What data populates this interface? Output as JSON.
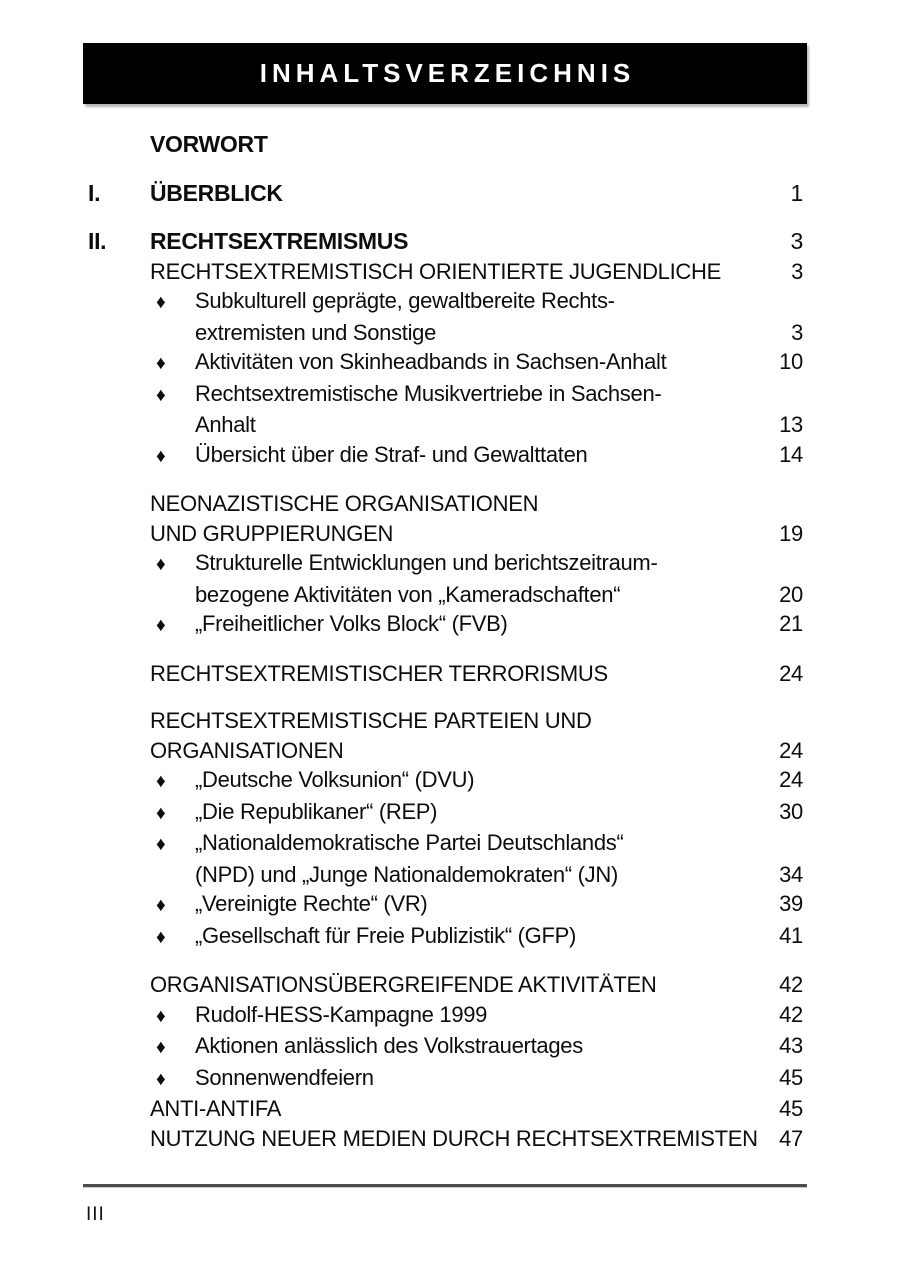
{
  "page": {
    "header": {
      "title": "INHALTSVERZEICHNIS"
    },
    "footer": {
      "page_label": "III"
    },
    "colors": {
      "bar_bg": "#000000",
      "bar_text": "#ffffff",
      "text": "#0d0d0d",
      "rule": "#4d4d4d"
    },
    "toc": {
      "bullet_glyph": "♦",
      "rows": [
        {
          "kind": "chapter",
          "numeral": "",
          "text": "VORWORT",
          "page": "",
          "gap": "first"
        },
        {
          "kind": "chapter",
          "numeral": "I.",
          "text": "ÜBERBLICK",
          "page": "1",
          "gap": "lg"
        },
        {
          "kind": "chapter",
          "numeral": "II.",
          "text": "RECHTSEXTREMISMUS",
          "page": "3",
          "gap": "lg"
        },
        {
          "kind": "section",
          "text": "RECHTSEXTREMISTISCH ORIENTIERTE JUGENDLICHE",
          "page": "3"
        },
        {
          "kind": "bullet",
          "text": "Subkulturell geprägte, gewaltbereite Rechts-",
          "page": ""
        },
        {
          "kind": "cont",
          "text": "extremisten und Sonstige",
          "page": "3"
        },
        {
          "kind": "bullet",
          "text": "Aktivitäten von Skinheadbands in Sachsen-Anhalt",
          "page": "10"
        },
        {
          "kind": "bullet",
          "text": "Rechtsextremistische Musikvertriebe in Sachsen-",
          "page": ""
        },
        {
          "kind": "cont",
          "text": "Anhalt",
          "page": "13"
        },
        {
          "kind": "bullet",
          "text": "Übersicht über die Straf- und Gewalttaten",
          "page": "14"
        },
        {
          "kind": "section",
          "text": "NEONAZISTISCHE ORGANISATIONEN",
          "page": "",
          "gap": "md"
        },
        {
          "kind": "section",
          "text": "UND GRUPPIERUNGEN",
          "page": "19"
        },
        {
          "kind": "bullet",
          "text": "Strukturelle Entwicklungen und berichtszeitraum-",
          "page": ""
        },
        {
          "kind": "cont",
          "text": "bezogene Aktivitäten von „Kameradschaften“",
          "page": "20"
        },
        {
          "kind": "bullet",
          "text": "„Freiheitlicher Volks Block“ (FVB)",
          "page": "21"
        },
        {
          "kind": "section",
          "text": "RECHTSEXTREMISTISCHER TERRORISMUS",
          "page": "24",
          "gap": "md"
        },
        {
          "kind": "section",
          "text": "RECHTSEXTREMISTISCHE PARTEIEN UND",
          "page": "",
          "gap": "md"
        },
        {
          "kind": "section",
          "text": "ORGANISATIONEN",
          "page": "24"
        },
        {
          "kind": "bullet",
          "text": "„Deutsche Volksunion“ (DVU)",
          "page": "24"
        },
        {
          "kind": "bullet",
          "text": "„Die Republikaner“ (REP)",
          "page": "30"
        },
        {
          "kind": "bullet",
          "text": "„Nationaldemokratische Partei Deutschlands“",
          "page": ""
        },
        {
          "kind": "cont",
          "text": "(NPD) und „Junge Nationaldemokraten“ (JN)",
          "page": "34"
        },
        {
          "kind": "bullet",
          "text": "„Vereinigte Rechte“ (VR)",
          "page": "39"
        },
        {
          "kind": "bullet",
          "text": "„Gesellschaft für Freie Publizistik“ (GFP)",
          "page": "41"
        },
        {
          "kind": "section",
          "text": "ORGANISATIONSÜBERGREIFENDE AKTIVITÄTEN",
          "page": "42",
          "gap": "md"
        },
        {
          "kind": "bullet",
          "text": "Rudolf-HESS-Kampagne 1999",
          "page": "42"
        },
        {
          "kind": "bullet",
          "text": "Aktionen anlässlich des Volkstrauertages",
          "page": "43"
        },
        {
          "kind": "bullet",
          "text": "Sonnenwendfeiern",
          "page": "45"
        },
        {
          "kind": "section",
          "text": "ANTI-ANTIFA",
          "page": "45"
        },
        {
          "kind": "section",
          "text": "NUTZUNG NEUER MEDIEN DURCH RECHTSEXTREMISTEN",
          "page": "47"
        }
      ]
    }
  }
}
